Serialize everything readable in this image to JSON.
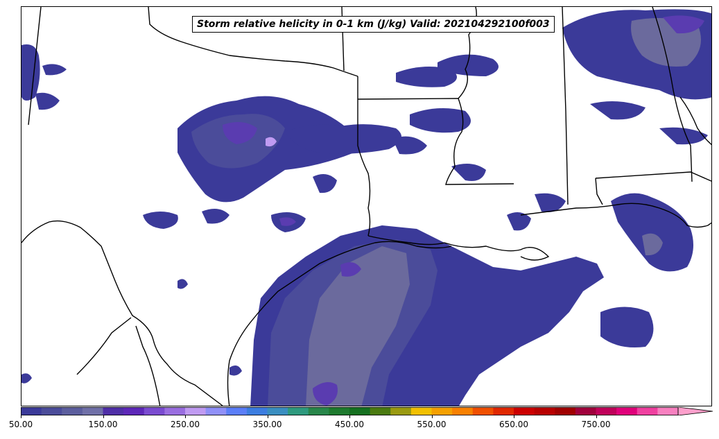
{
  "title": "Storm relative helicity in 0-1 km (J/kg) Valid: 202104292100f003",
  "colorbar": {
    "tick_labels": [
      "50.00",
      "150.00",
      "250.00",
      "350.00",
      "450.00",
      "550.00",
      "650.00",
      "750.00"
    ],
    "colors": [
      "#3b3a99",
      "#4b4c9a",
      "#5c5e9e",
      "#7070a8",
      "#4f2ea7",
      "#5d27b8",
      "#7a4bd0",
      "#9a6ee0",
      "#c09bf2",
      "#9090f8",
      "#5b7ef8",
      "#3c7de0",
      "#3a8ec0",
      "#2e9a7e",
      "#28864a",
      "#1e7a2e",
      "#157020",
      "#4a7a10",
      "#9a9a10",
      "#f2c000",
      "#f5a000",
      "#f88000",
      "#f05000",
      "#e02800",
      "#cc0000",
      "#b80000",
      "#a00000",
      "#a0003c",
      "#c0005a",
      "#e0007a",
      "#f040a0",
      "#f880c0"
    ],
    "extend_color": "#fda0cc"
  },
  "legend_colors": {
    "srh_50": "#3b3a99",
    "srh_75": "#4b4c9a",
    "srh_100": "#6b6a9d",
    "srh_150": "#5a3cb0",
    "srh_200": "#7a4bd0",
    "srh_250": "#c09bf2"
  },
  "icons": {
    "colorbar_extend": "triangle-right"
  }
}
